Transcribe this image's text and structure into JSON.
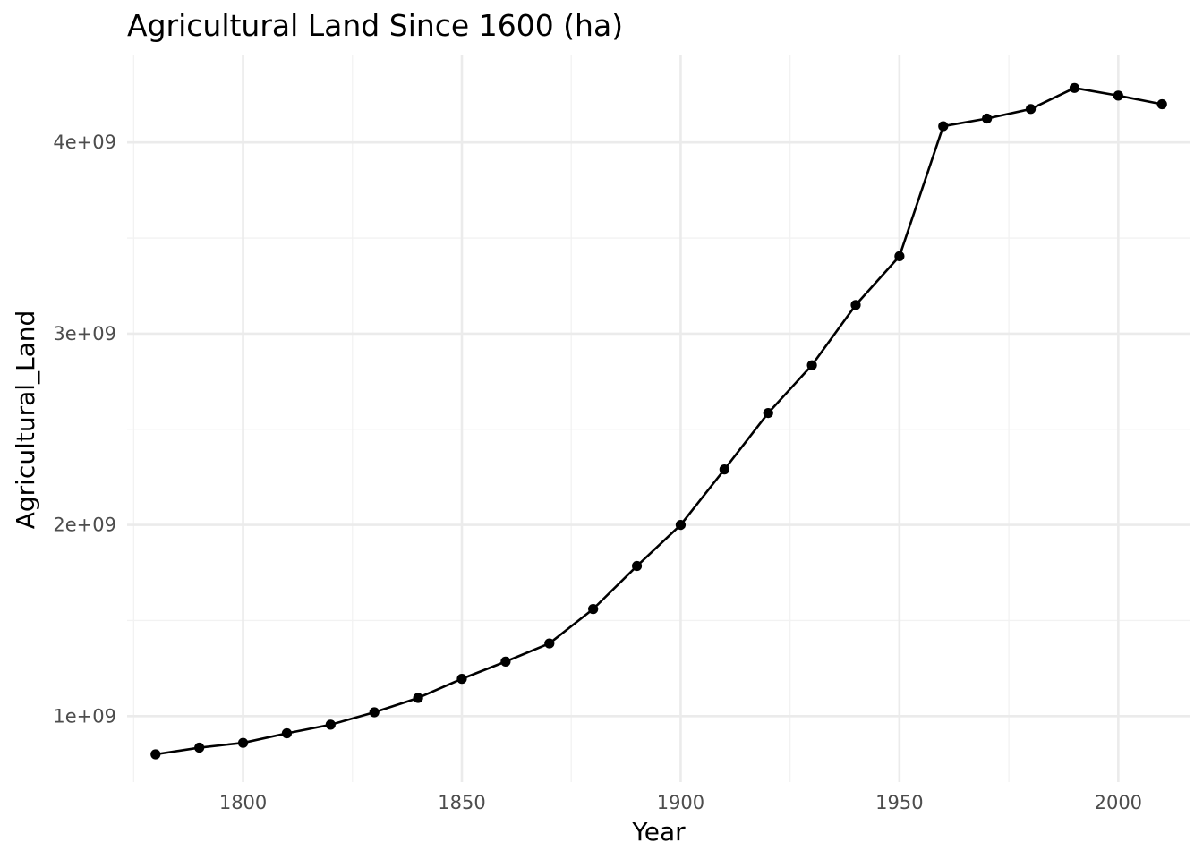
{
  "chart_data": {
    "type": "line",
    "title": "Agricultural Land Since 1600 (ha)",
    "xlabel": "Year",
    "ylabel": "Agricultural_Land",
    "x": [
      1780,
      1790,
      1800,
      1810,
      1820,
      1830,
      1840,
      1850,
      1860,
      1870,
      1880,
      1890,
      1900,
      1910,
      1920,
      1930,
      1940,
      1950,
      1960,
      1970,
      1980,
      1990,
      2000,
      2010
    ],
    "series": [
      {
        "values": [
          800000000,
          835000000,
          860000000,
          910000000,
          955000000,
          1020000000,
          1095000000,
          1195000000,
          1285000000,
          1380000000,
          1560000000,
          1785000000,
          2000000000,
          2290000000,
          2585000000,
          2835000000,
          3150000000,
          3405000000,
          4085000000,
          4125000000,
          4175000000,
          4285000000,
          4245000000,
          4200000000
        ],
        "color": "#000000",
        "markers": true
      }
    ],
    "xlim": [
      1773.5,
      2016.5
    ],
    "ylim": [
      655000000,
      4455000000
    ],
    "xticks": [
      1800,
      1850,
      1900,
      1950,
      2000
    ],
    "xtick_labels": [
      "1800",
      "1850",
      "1900",
      "1950",
      "2000"
    ],
    "yticks": [
      1000000000,
      2000000000,
      3000000000,
      4000000000
    ],
    "ytick_labels": [
      "1e+09",
      "2e+09",
      "3e+09",
      "4e+09"
    ],
    "grid": true,
    "legend": "none"
  }
}
